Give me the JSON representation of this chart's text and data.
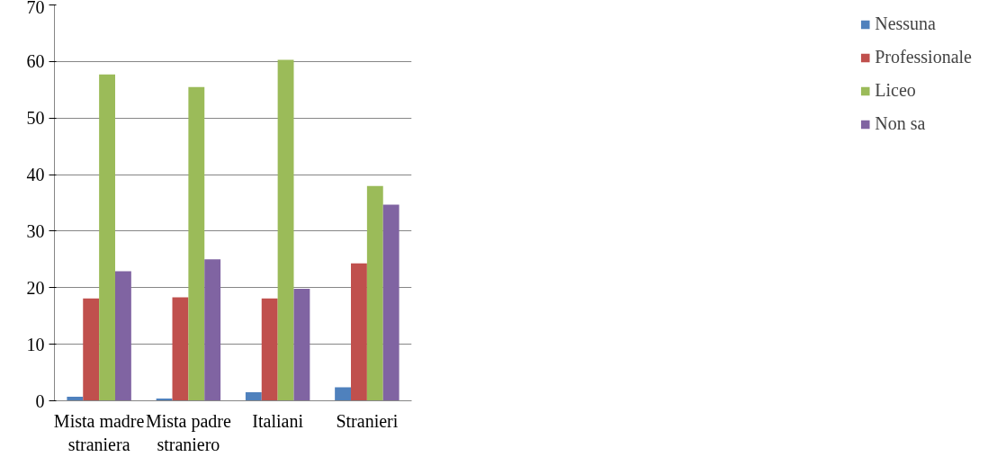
{
  "chart_data": {
    "type": "bar",
    "categories": [
      "Mista madre straniera",
      "Mista padre straniero",
      "Italiani",
      "Stranieri"
    ],
    "series": [
      {
        "name": "Nessuna",
        "color": "#4f81bd",
        "values": [
          0.7,
          0.4,
          1.5,
          2.4
        ]
      },
      {
        "name": "Professionale",
        "color": "#c0504d",
        "values": [
          18.1,
          18.3,
          18.1,
          24.3
        ]
      },
      {
        "name": "Liceo",
        "color": "#9bbb59",
        "values": [
          57.7,
          55.5,
          60.3,
          38.0
        ]
      },
      {
        "name": "Non sa",
        "color": "#8064a2",
        "values": [
          22.9,
          25.0,
          19.8,
          34.7
        ]
      }
    ],
    "ylim": [
      0,
      70
    ],
    "yticks": [
      0,
      10,
      20,
      30,
      40,
      50,
      60,
      70
    ],
    "grid": "y",
    "legend": "right"
  }
}
